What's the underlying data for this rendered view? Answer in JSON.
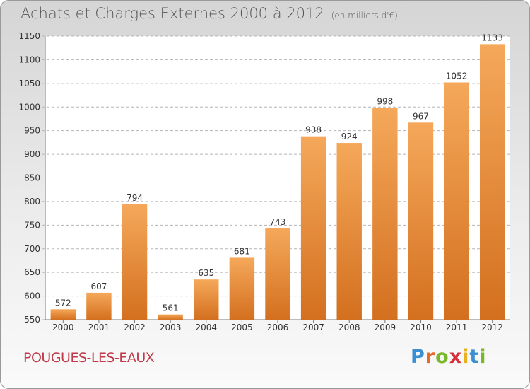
{
  "header": {
    "title": "Achats et Charges Externes 2000 à 2012",
    "subtitle": "(en milliers d'€)"
  },
  "commune": "POUGUES-LES-EAUX",
  "logo": {
    "text": "Proxiti",
    "letters": [
      "P",
      "r",
      "o",
      "x",
      "i",
      "t",
      "i"
    ],
    "colors": [
      "#3a8fd1",
      "#e8692a",
      "#78b82a",
      "#d62f3a",
      "#e8b120",
      "#3a8fd1",
      "#78b82a"
    ]
  },
  "chart_data": {
    "type": "bar",
    "categories": [
      "2000",
      "2001",
      "2002",
      "2003",
      "2004",
      "2005",
      "2006",
      "2007",
      "2008",
      "2009",
      "2010",
      "2011",
      "2012"
    ],
    "values": [
      572,
      607,
      794,
      561,
      635,
      681,
      743,
      938,
      924,
      998,
      967,
      1052,
      1133
    ],
    "ylim": [
      550,
      1150
    ],
    "yticks": [
      550,
      600,
      650,
      700,
      750,
      800,
      850,
      900,
      950,
      1000,
      1050,
      1100,
      1150
    ],
    "grid": true,
    "colors": {
      "bar_light": "#f5a85a",
      "bar_dark": "#d3701f",
      "grid": "#b5b5b5",
      "axis": "#777777"
    }
  }
}
